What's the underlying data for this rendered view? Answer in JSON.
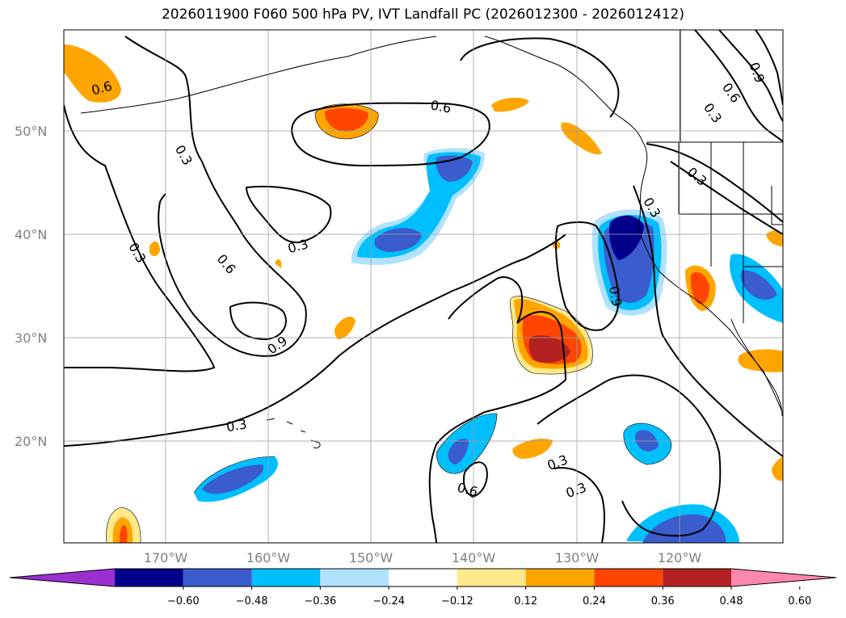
{
  "title": "2026011900 F060 500 hPa PV, IVT Landfall PC (2026012300 - 2026012412)",
  "lat_labels": [
    "50°N",
    "40°N",
    "30°N",
    "20°N"
  ],
  "lon_labels": [
    "170°W",
    "160°W",
    "150°W",
    "140°W",
    "130°W",
    "120°W"
  ],
  "contour_labels": [
    "0.6",
    "0.3",
    "0.3",
    "0.6",
    "0.3",
    "0.6",
    "0.3",
    "0.9",
    "0.3",
    "0.6",
    "0.3",
    "0.3",
    "0.9",
    "0.6",
    "0.3",
    "0.3",
    "0.9"
  ],
  "colorbar": {
    "ticks": [
      "−0.60",
      "−0.48",
      "−0.36",
      "−0.24",
      "−0.12",
      "0.12",
      "0.24",
      "0.36",
      "0.48",
      "0.60"
    ],
    "colors": [
      "#9b30d0",
      "#00008b",
      "#3a5ccc",
      "#00bfff",
      "#b0e2ff",
      "#ffffff",
      "#ffe98a",
      "#ffa500",
      "#ff4500",
      "#b22222",
      "#ff86ad"
    ]
  },
  "colors": {
    "neg1": "#b0e2ff",
    "neg2": "#00bfff",
    "neg3": "#3a5ccc",
    "neg4": "#00008b",
    "pos1": "#ffe98a",
    "pos2": "#ffa500",
    "pos3": "#ff4500",
    "pos4": "#b22222"
  }
}
